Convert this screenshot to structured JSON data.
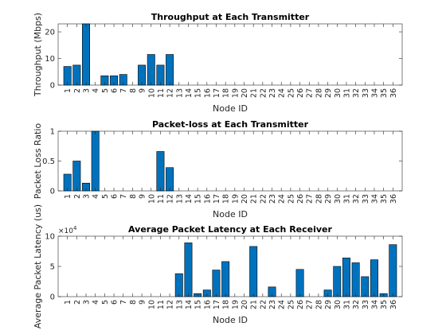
{
  "bar_color": "#0072BD",
  "chart_data": [
    {
      "type": "bar",
      "title": "Throughput at Each Transmitter",
      "xlabel": "Node ID",
      "ylabel": "Throughput (Mbps)",
      "ylim": [
        0,
        23
      ],
      "yticks": [
        0,
        10,
        20
      ],
      "ytick_labels": [
        "0",
        "10",
        "20"
      ],
      "exponent_label": "",
      "categories": [
        "1",
        "2",
        "3",
        "4",
        "5",
        "6",
        "7",
        "8",
        "9",
        "10",
        "11",
        "12",
        "13",
        "14",
        "15",
        "16",
        "17",
        "18",
        "19",
        "20",
        "21",
        "22",
        "23",
        "24",
        "25",
        "26",
        "27",
        "28",
        "29",
        "30",
        "31",
        "32",
        "33",
        "34",
        "35",
        "36"
      ],
      "values": [
        7,
        7.5,
        23,
        0,
        3.5,
        3.5,
        4,
        0,
        7.5,
        11.5,
        7.5,
        11.5,
        0,
        0,
        0,
        0,
        0,
        0,
        0,
        0,
        0,
        0,
        0,
        0,
        0,
        0,
        0,
        0,
        0,
        0,
        0,
        0,
        0,
        0,
        0,
        0
      ]
    },
    {
      "type": "bar",
      "title": "Packet-loss at Each Transmitter",
      "xlabel": "Node ID",
      "ylabel": "Packet Loss Ratio",
      "ylim": [
        0,
        1
      ],
      "yticks": [
        0,
        0.5,
        1
      ],
      "ytick_labels": [
        "0",
        "0.5",
        "1"
      ],
      "exponent_label": "",
      "categories": [
        "1",
        "2",
        "3",
        "4",
        "5",
        "6",
        "7",
        "8",
        "9",
        "10",
        "11",
        "12",
        "13",
        "14",
        "15",
        "16",
        "17",
        "18",
        "19",
        "20",
        "21",
        "22",
        "23",
        "24",
        "25",
        "26",
        "27",
        "28",
        "29",
        "30",
        "31",
        "32",
        "33",
        "34",
        "35",
        "36"
      ],
      "values": [
        0.28,
        0.5,
        0.13,
        1.0,
        0,
        0,
        0,
        0,
        0,
        0,
        0.66,
        0.39,
        0,
        0,
        0,
        0,
        0,
        0,
        0,
        0,
        0,
        0,
        0,
        0,
        0,
        0,
        0,
        0,
        0,
        0,
        0,
        0,
        0,
        0,
        0,
        0
      ]
    },
    {
      "type": "bar",
      "title": "Average Packet Latency at Each Receiver",
      "xlabel": "Node ID",
      "ylabel": "Average Packet Latency (us)",
      "ylim": [
        0,
        100000
      ],
      "yticks": [
        0,
        50000,
        100000
      ],
      "ytick_labels": [
        "0",
        "5",
        "10"
      ],
      "exponent_label": "×10",
      "exponent_power": "4",
      "categories": [
        "1",
        "2",
        "3",
        "4",
        "5",
        "6",
        "7",
        "8",
        "9",
        "10",
        "11",
        "12",
        "13",
        "14",
        "15",
        "16",
        "17",
        "18",
        "19",
        "20",
        "21",
        "22",
        "23",
        "24",
        "25",
        "26",
        "27",
        "28",
        "29",
        "30",
        "31",
        "32",
        "33",
        "34",
        "35",
        "36"
      ],
      "values": [
        0,
        0,
        0,
        0,
        0,
        0,
        0,
        0,
        0,
        0,
        0,
        0,
        38000,
        89000,
        5000,
        11000,
        44000,
        58000,
        0,
        0,
        83000,
        0,
        16000,
        0,
        0,
        45000,
        0,
        0,
        11000,
        50000,
        64000,
        56000,
        33000,
        61000,
        5000,
        86000
      ]
    }
  ]
}
